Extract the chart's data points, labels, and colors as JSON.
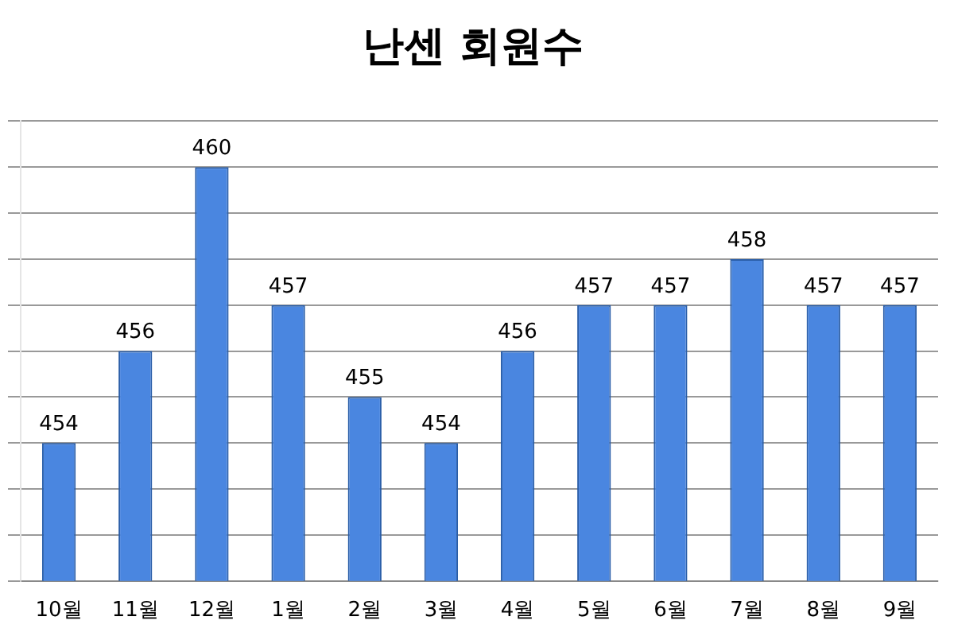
{
  "chart_data": {
    "type": "bar",
    "title": "난센 회원수",
    "categories": [
      "10월",
      "11월",
      "12월",
      "1월",
      "2월",
      "3월",
      "4월",
      "5월",
      "6월",
      "7월",
      "8월",
      "9월"
    ],
    "values": [
      454,
      456,
      460,
      457,
      455,
      454,
      456,
      457,
      457,
      458,
      457,
      457
    ],
    "color": "#4a86e0",
    "data_labels": true,
    "grid": "y",
    "legend": false,
    "tick_labels": "x",
    "ylim": [
      451,
      461
    ],
    "yticks": [
      {
        "value": 451,
        "label": null
      },
      {
        "value": 452,
        "label": null
      },
      {
        "value": 453,
        "label": null
      },
      {
        "value": 454,
        "label": null
      },
      {
        "value": 455,
        "label": null
      },
      {
        "value": 456,
        "label": null
      },
      {
        "value": 457,
        "label": null
      },
      {
        "value": 458,
        "label": null
      },
      {
        "value": 459,
        "label": null
      },
      {
        "value": 460,
        "label": null
      },
      {
        "value": 461,
        "label": null
      }
    ]
  }
}
